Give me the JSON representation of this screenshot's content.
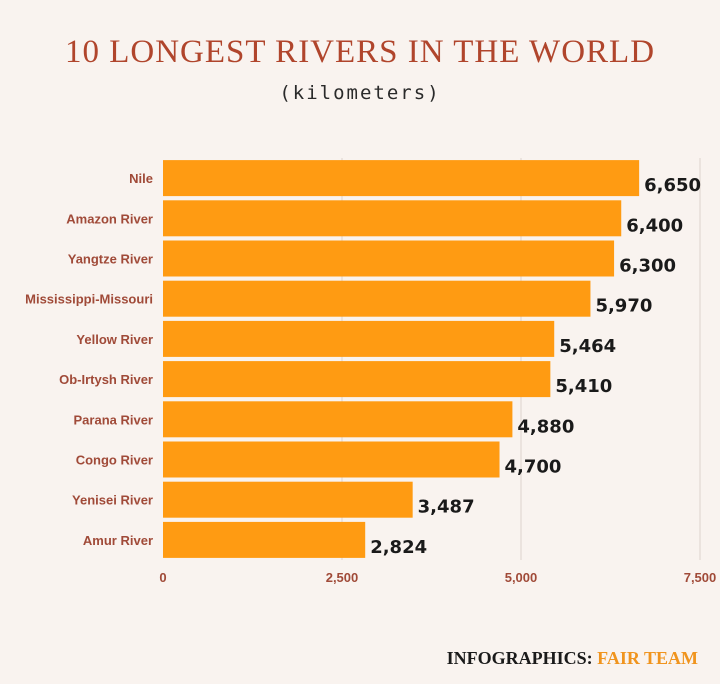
{
  "title": "10 LONGEST RIVERS IN THE WORLD",
  "subtitle": "(kilometers)",
  "credit": {
    "prefix": "INFOGRAPHICS:",
    "name": "FAIR TEAM"
  },
  "colors": {
    "bar": "#ff9b12",
    "grid": "#ddd3cc",
    "label": "#a04a38",
    "title": "#b0452c",
    "credit_accent": "#f0941e"
  },
  "chart_data": {
    "type": "bar",
    "orientation": "horizontal",
    "title": "10 LONGEST RIVERS IN THE WORLD",
    "subtitle": "(kilometers)",
    "categories": [
      "Nile",
      "Amazon River",
      "Yangtze River",
      "Mississippi-Missouri",
      "Yellow River",
      "Ob-Irtysh River",
      "Parana River",
      "Congo River",
      "Yenisei River",
      "Amur River"
    ],
    "values": [
      6650,
      6400,
      6300,
      5970,
      5464,
      5410,
      4880,
      4700,
      3487,
      2824
    ],
    "value_labels": [
      "6,650",
      "6,400",
      "6,300",
      "5,970",
      "5,464",
      "5,410",
      "4,880",
      "4,700",
      "3,487",
      "2,824"
    ],
    "xlim": [
      0,
      7500
    ],
    "xticks": [
      0,
      2500,
      5000,
      7500
    ],
    "xtick_labels": [
      "0",
      "2,500",
      "5,000",
      "7,500"
    ],
    "grid": true,
    "legend": "none"
  }
}
